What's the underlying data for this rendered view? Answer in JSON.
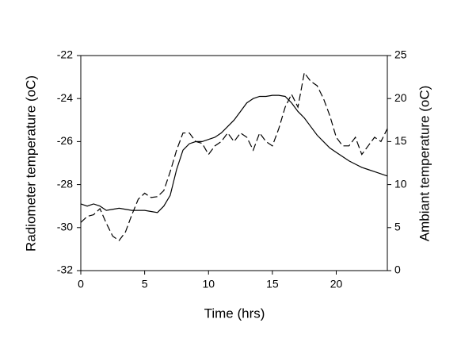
{
  "chart_data": {
    "type": "line",
    "x_label": "Time (hrs)",
    "y_label": "Radiometer temperature (oC)",
    "y2_label": "Ambiant temperature (oC)",
    "x": [
      0,
      0.5,
      1,
      1.5,
      2,
      2.5,
      3,
      3.5,
      4,
      4.5,
      5,
      5.5,
      6,
      6.5,
      7,
      7.5,
      8,
      8.5,
      9,
      9.5,
      10,
      10.5,
      11,
      11.5,
      12,
      12.5,
      13,
      13.5,
      14,
      14.5,
      15,
      15.5,
      16,
      16.5,
      17,
      17.5,
      18,
      18.5,
      19,
      19.5,
      20,
      20.5,
      21,
      21.5,
      22,
      22.5,
      23,
      23.5,
      24
    ],
    "series": [
      {
        "color": "#000000",
        "linestyle": "solid",
        "axis": "y",
        "values": [
          -28.9,
          -29.0,
          -28.9,
          -29.0,
          -29.2,
          -29.15,
          -29.1,
          -29.15,
          -29.2,
          -29.2,
          -29.2,
          -29.25,
          -29.3,
          -29.0,
          -28.5,
          -27.3,
          -26.4,
          -26.1,
          -26.0,
          -26.0,
          -25.9,
          -25.8,
          -25.6,
          -25.3,
          -25.0,
          -24.6,
          -24.2,
          -24.0,
          -23.9,
          -23.9,
          -23.85,
          -23.85,
          -23.9,
          -24.2,
          -24.6,
          -24.9,
          -25.3,
          -25.7,
          -26.0,
          -26.3,
          -26.5,
          -26.7,
          -26.9,
          -27.05,
          -27.2,
          -27.3,
          -27.4,
          -27.5,
          -27.6
        ]
      },
      {
        "color": "#000000",
        "linestyle": "dashed",
        "axis": "y2",
        "values": [
          5.6,
          6.3,
          6.5,
          7.2,
          5.5,
          4.0,
          3.5,
          4.5,
          6.5,
          8.3,
          9.0,
          8.5,
          8.6,
          9.3,
          11.5,
          14.0,
          16.0,
          16.0,
          15.0,
          14.8,
          13.5,
          14.5,
          15.0,
          16.0,
          15.0,
          16.0,
          15.5,
          14.0,
          16.0,
          15.0,
          14.5,
          16.5,
          19.0,
          20.5,
          19.0,
          23.0,
          22.0,
          21.5,
          20.0,
          18.0,
          15.5,
          14.5,
          14.5,
          15.5,
          13.5,
          14.5,
          15.5,
          15.0,
          16.5
        ]
      }
    ],
    "xlim": [
      0,
      24
    ],
    "xticks": [
      0,
      5,
      10,
      15,
      20
    ],
    "ylim": [
      -32,
      -22
    ],
    "yticks": [
      -32,
      -30,
      -28,
      -26,
      -24,
      -22
    ],
    "y2lim": [
      0,
      25
    ],
    "y2ticks": [
      0,
      5,
      10,
      15,
      20,
      25
    ],
    "grid": false
  }
}
